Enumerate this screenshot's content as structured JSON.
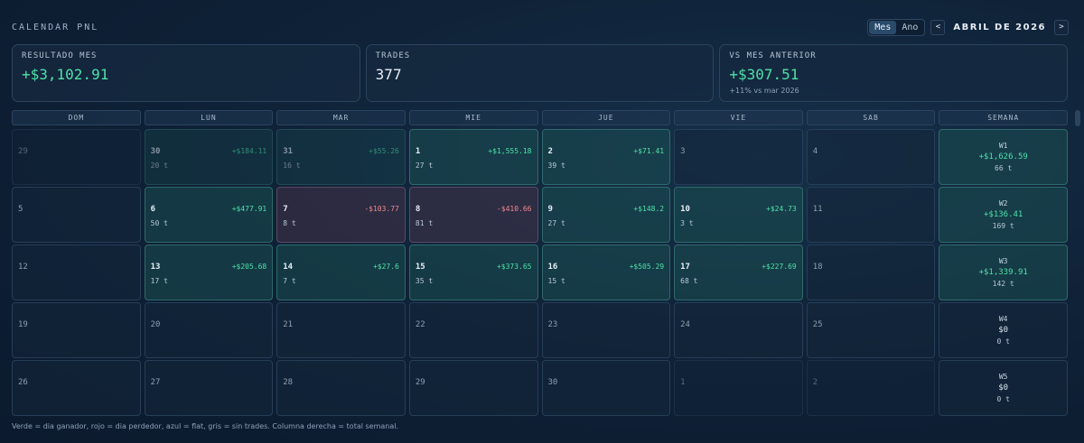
{
  "header": {
    "title": "CALENDAR PNL",
    "toggle": [
      "Mes",
      "Ano"
    ],
    "active_toggle": "Mes",
    "prev": "<",
    "next": ">",
    "month": "ABRIL DE 2026"
  },
  "stats": [
    {
      "label": "RESULTADO MES",
      "value": "+$3,102.91",
      "tone": "pos",
      "sub": ""
    },
    {
      "label": "TRADES",
      "value": "377",
      "tone": "neutral",
      "sub": ""
    },
    {
      "label": "VS MES ANTERIOR",
      "value": "+$307.51",
      "tone": "pos",
      "sub": "+11% vs mar 2026"
    }
  ],
  "weekdays": [
    "DOM",
    "LUN",
    "MAR",
    "MIE",
    "JUE",
    "VIE",
    "SAB",
    "SEMANA"
  ],
  "weeks": [
    {
      "days": [
        {
          "num": "29",
          "pnl": "",
          "trades": "",
          "type": "other"
        },
        {
          "num": "30",
          "pnl": "+$184.11",
          "trades": "20 t",
          "type": "other-win"
        },
        {
          "num": "31",
          "pnl": "+$55.26",
          "trades": "16 t",
          "type": "other-win"
        },
        {
          "num": "1",
          "pnl": "+$1,555.18",
          "trades": "27 t",
          "type": "win"
        },
        {
          "num": "2",
          "pnl": "+$71.41",
          "trades": "39 t",
          "type": "win"
        },
        {
          "num": "3",
          "pnl": "",
          "trades": "",
          "type": "empty"
        },
        {
          "num": "4",
          "pnl": "",
          "trades": "",
          "type": "empty"
        }
      ],
      "total": {
        "label": "W1",
        "pnl": "+$1,626.59",
        "trades": "66 t",
        "type": "win"
      }
    },
    {
      "days": [
        {
          "num": "5",
          "pnl": "",
          "trades": "",
          "type": "empty"
        },
        {
          "num": "6",
          "pnl": "+$477.91",
          "trades": "50 t",
          "type": "win"
        },
        {
          "num": "7",
          "pnl": "-$103.77",
          "trades": "8 t",
          "type": "loss"
        },
        {
          "num": "8",
          "pnl": "-$410.66",
          "trades": "81 t",
          "type": "loss"
        },
        {
          "num": "9",
          "pnl": "+$148.2",
          "trades": "27 t",
          "type": "win"
        },
        {
          "num": "10",
          "pnl": "+$24.73",
          "trades": "3 t",
          "type": "win"
        },
        {
          "num": "11",
          "pnl": "",
          "trades": "",
          "type": "empty"
        }
      ],
      "total": {
        "label": "W2",
        "pnl": "+$136.41",
        "trades": "169 t",
        "type": "win"
      }
    },
    {
      "days": [
        {
          "num": "12",
          "pnl": "",
          "trades": "",
          "type": "empty"
        },
        {
          "num": "13",
          "pnl": "+$205.68",
          "trades": "17 t",
          "type": "win"
        },
        {
          "num": "14",
          "pnl": "+$27.6",
          "trades": "7 t",
          "type": "win"
        },
        {
          "num": "15",
          "pnl": "+$373.65",
          "trades": "35 t",
          "type": "win"
        },
        {
          "num": "16",
          "pnl": "+$505.29",
          "trades": "15 t",
          "type": "win"
        },
        {
          "num": "17",
          "pnl": "+$227.69",
          "trades": "68 t",
          "type": "win"
        },
        {
          "num": "18",
          "pnl": "",
          "trades": "",
          "type": "empty"
        }
      ],
      "total": {
        "label": "W3",
        "pnl": "+$1,339.91",
        "trades": "142 t",
        "type": "win"
      }
    },
    {
      "days": [
        {
          "num": "19",
          "pnl": "",
          "trades": "",
          "type": "empty"
        },
        {
          "num": "20",
          "pnl": "",
          "trades": "",
          "type": "empty"
        },
        {
          "num": "21",
          "pnl": "",
          "trades": "",
          "type": "empty"
        },
        {
          "num": "22",
          "pnl": "",
          "trades": "",
          "type": "empty"
        },
        {
          "num": "23",
          "pnl": "",
          "trades": "",
          "type": "empty"
        },
        {
          "num": "24",
          "pnl": "",
          "trades": "",
          "type": "empty"
        },
        {
          "num": "25",
          "pnl": "",
          "trades": "",
          "type": "empty"
        }
      ],
      "total": {
        "label": "W4",
        "pnl": "$0",
        "trades": "0 t",
        "type": "flat"
      }
    },
    {
      "days": [
        {
          "num": "26",
          "pnl": "",
          "trades": "",
          "type": "empty"
        },
        {
          "num": "27",
          "pnl": "",
          "trades": "",
          "type": "empty"
        },
        {
          "num": "28",
          "pnl": "",
          "trades": "",
          "type": "empty"
        },
        {
          "num": "29",
          "pnl": "",
          "trades": "",
          "type": "empty"
        },
        {
          "num": "30",
          "pnl": "",
          "trades": "",
          "type": "empty"
        },
        {
          "num": "1",
          "pnl": "",
          "trades": "",
          "type": "other"
        },
        {
          "num": "2",
          "pnl": "",
          "trades": "",
          "type": "other"
        }
      ],
      "total": {
        "label": "W5",
        "pnl": "$0",
        "trades": "0 t",
        "type": "flat"
      }
    }
  ],
  "footer": "Verde = dia ganador, rojo = dia perdedor, azul = flat, gris = sin trades. Columna derecha = total semanal.",
  "colors": {
    "positive": "#4fe0a8",
    "negative": "#f08a8a",
    "win_bg": "#1a4e50",
    "loss_bg": "#3c3046"
  }
}
